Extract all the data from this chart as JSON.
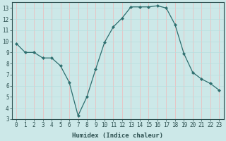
{
  "x": [
    0,
    1,
    2,
    3,
    4,
    5,
    6,
    7,
    8,
    9,
    10,
    11,
    12,
    13,
    14,
    15,
    16,
    17,
    18,
    19,
    20,
    21,
    22,
    23
  ],
  "y": [
    9.8,
    9.0,
    9.0,
    8.5,
    8.5,
    7.8,
    6.3,
    3.3,
    5.0,
    7.5,
    9.9,
    11.3,
    12.1,
    13.1,
    13.1,
    13.1,
    13.2,
    13.0,
    11.5,
    8.9,
    7.2,
    6.6,
    6.2,
    5.6
  ],
  "line_color": "#2d6e6e",
  "marker": "D",
  "marker_size": 2.2,
  "background_color": "#cce8e8",
  "grid_color_major": "#f0b8b8",
  "grid_color_minor": "#b8dede",
  "xlabel": "Humidex (Indice chaleur)",
  "xlim": [
    -0.5,
    23.5
  ],
  "ylim": [
    3,
    13.5
  ],
  "yticks": [
    3,
    4,
    5,
    6,
    7,
    8,
    9,
    10,
    11,
    12,
    13
  ],
  "xticks": [
    0,
    1,
    2,
    3,
    4,
    5,
    6,
    7,
    8,
    9,
    10,
    11,
    12,
    13,
    14,
    15,
    16,
    17,
    18,
    19,
    20,
    21,
    22,
    23
  ],
  "xtick_labels": [
    "0",
    "1",
    "2",
    "3",
    "4",
    "5",
    "6",
    "7",
    "8",
    "9",
    "10",
    "11",
    "12",
    "13",
    "14",
    "15",
    "16",
    "17",
    "18",
    "19",
    "20",
    "21",
    "22",
    "23"
  ],
  "tick_color": "#2d5050",
  "xlabel_fontsize": 6.5,
  "tick_fontsize": 5.5,
  "spine_color": "#2d5050",
  "line_width": 0.9
}
